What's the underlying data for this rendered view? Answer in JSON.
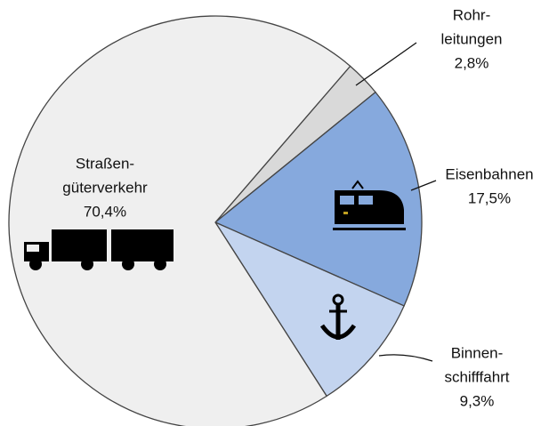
{
  "chart_data": {
    "type": "pie",
    "categories": [
      [
        "Rohr-",
        "leitungen"
      ],
      [
        "Eisenbahnen"
      ],
      [
        "Binnen-",
        "schifffahrt"
      ],
      [
        "Straßen-",
        "güterverkehr"
      ]
    ],
    "values": [
      2.8,
      17.5,
      9.3,
      70.4
    ],
    "value_labels": [
      "2,8%",
      "17,5%",
      "9,3%",
      "70,4%"
    ],
    "colors": [
      "#d9d9d9",
      "#86a9dd",
      "#c3d4ef",
      "#efefef"
    ]
  }
}
